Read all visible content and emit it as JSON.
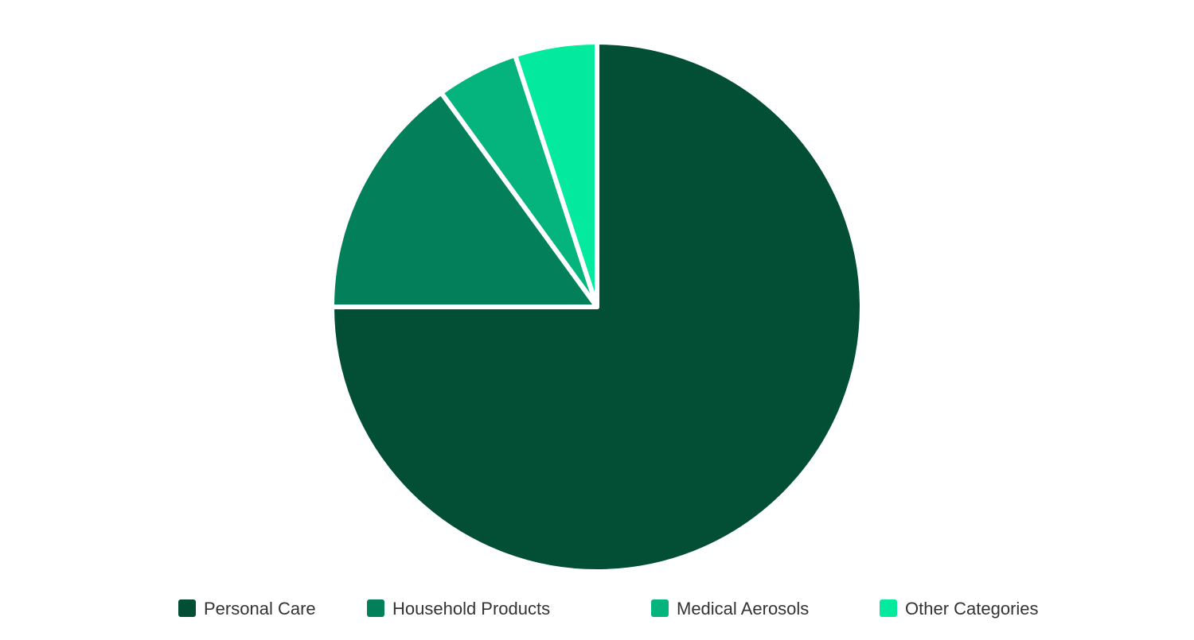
{
  "chart_data": {
    "type": "pie",
    "title": "",
    "categories": [
      "Personal Care",
      "Household Products",
      "Medical Aerosols",
      "Other Categories"
    ],
    "values": [
      75,
      15,
      5,
      5
    ],
    "colors": [
      "#034f36",
      "#03805a",
      "#05b47c",
      "#03e99e"
    ],
    "start_angle_deg": 0,
    "direction": "clockwise",
    "legend": {
      "position": "bottom",
      "items": [
        {
          "label": "Personal Care",
          "color": "#034f36"
        },
        {
          "label": "Household Products",
          "color": "#03805a"
        },
        {
          "label": "Medical Aerosols",
          "color": "#05b47c"
        },
        {
          "label": "Other Categories",
          "color": "#03e99e"
        }
      ]
    }
  }
}
